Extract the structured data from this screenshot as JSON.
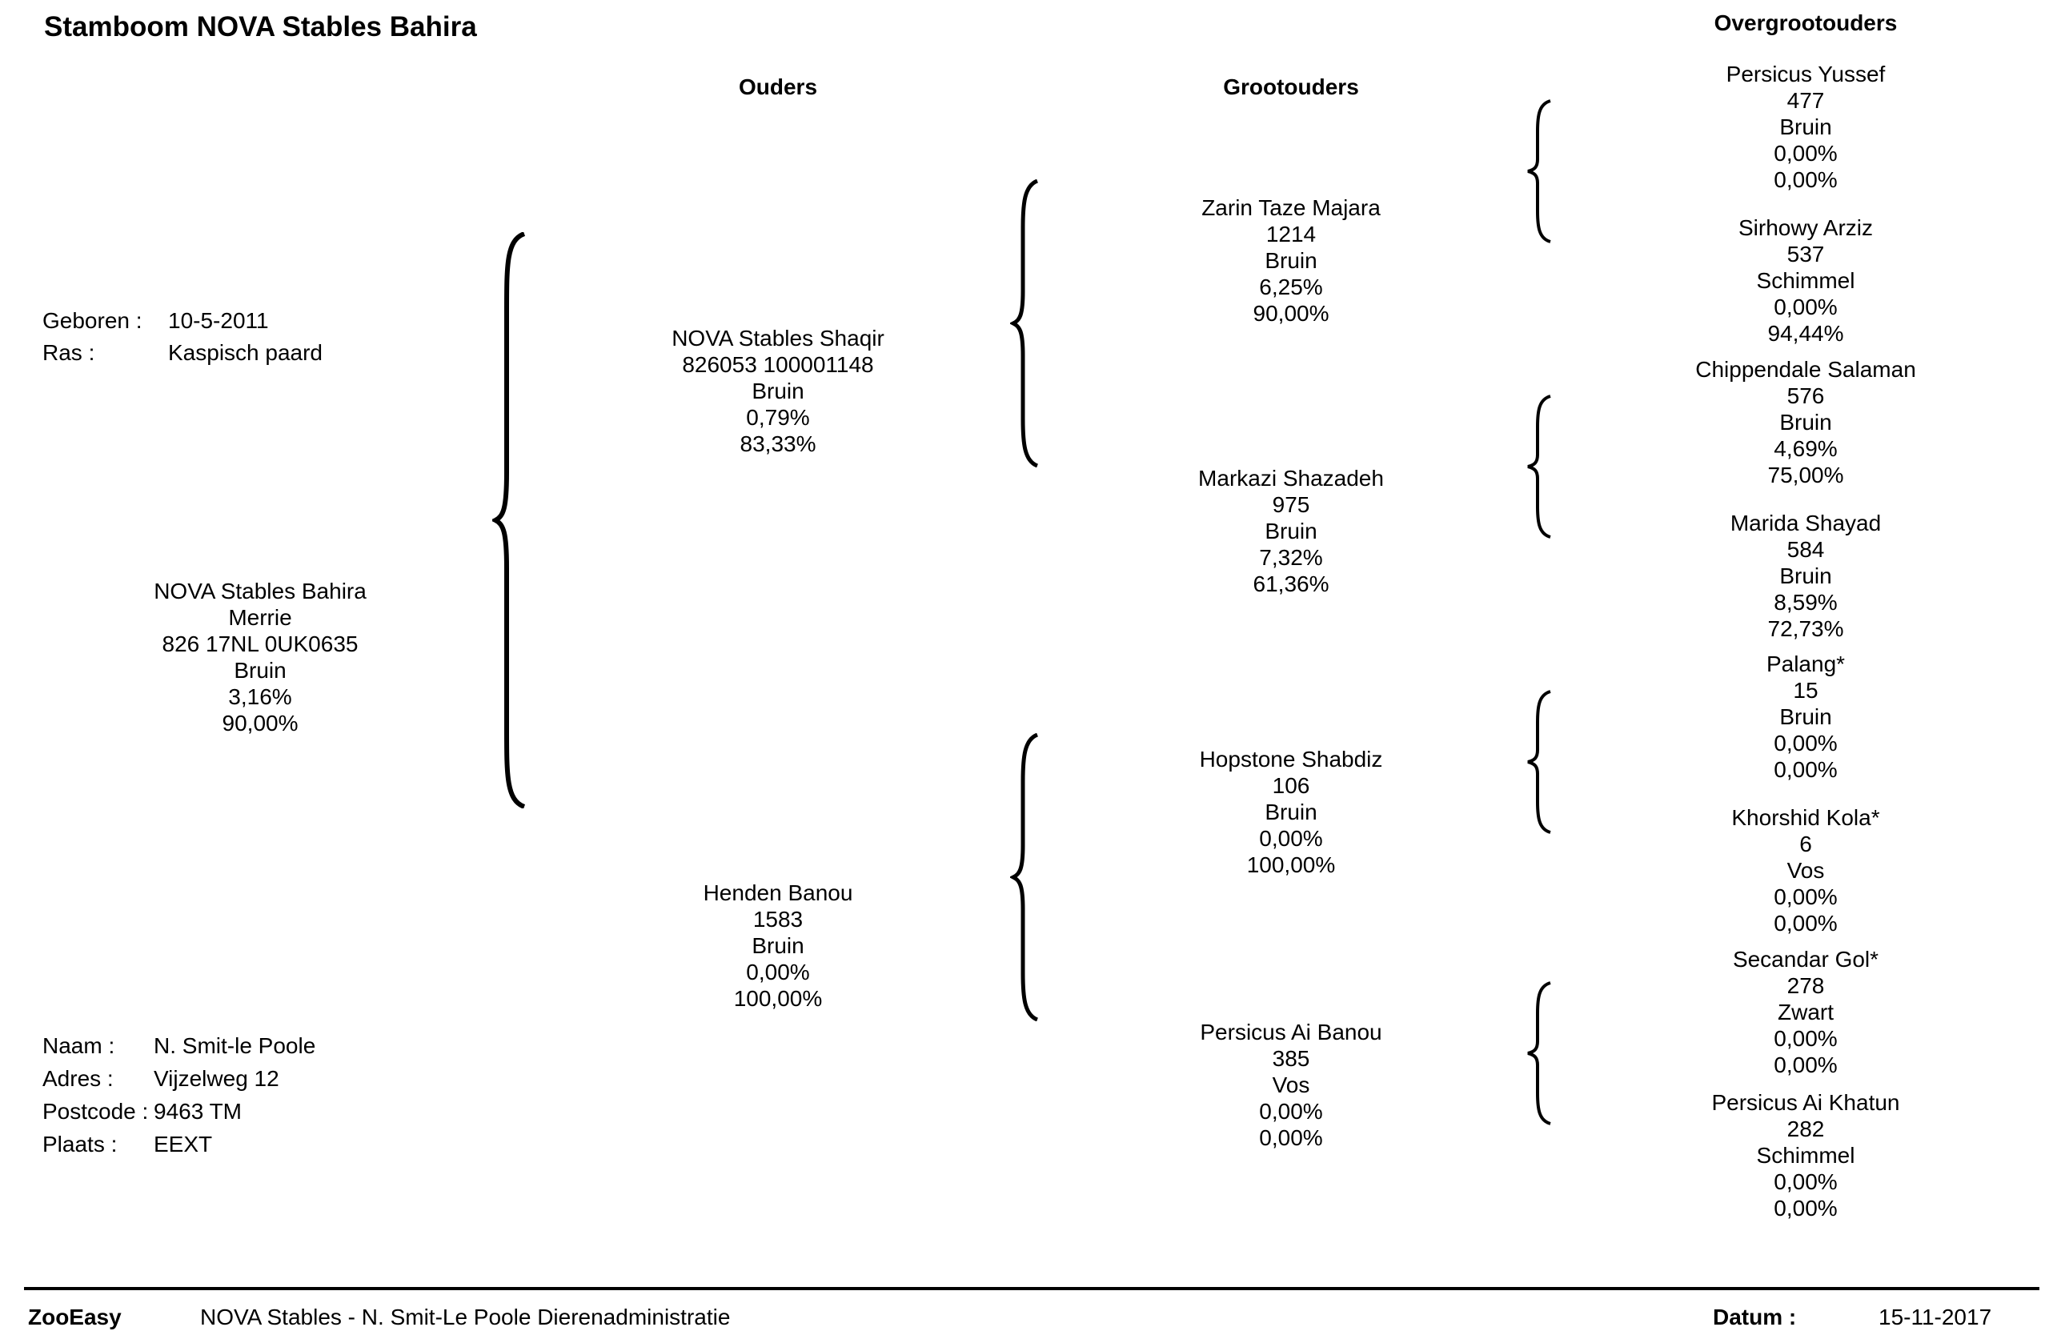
{
  "title": "Stamboom NOVA Stables Bahira",
  "headers": {
    "parents": "Ouders",
    "grandparents": "Grootouders",
    "great_grandparents": "Overgrootouders"
  },
  "subject_info": {
    "born_label": "Geboren :",
    "born_value": "10-5-2011",
    "breed_label": "Ras :",
    "breed_value": "Kaspisch paard"
  },
  "subject": {
    "name": "NOVA Stables Bahira",
    "sex": "Merrie",
    "id": "826 17NL 0UK0635",
    "color": "Bruin",
    "pct1": "3,16%",
    "pct2": "90,00%"
  },
  "owner": {
    "name_label": "Naam :",
    "name_value": "N.  Smit-le Poole",
    "address_label": "Adres :",
    "address_value": "Vijzelweg 12",
    "postcode_label": "Postcode :",
    "postcode_value": "9463 TM",
    "city_label": "Plaats :",
    "city_value": "EEXT"
  },
  "parents": [
    {
      "name": "NOVA Stables Shaqir",
      "id": "826053 100001148",
      "color": "Bruin",
      "pct1": "0,79%",
      "pct2": "83,33%"
    },
    {
      "name": "Henden Banou",
      "id": "1583",
      "color": "Bruin",
      "pct1": "0,00%",
      "pct2": "100,00%"
    }
  ],
  "grandparents": [
    {
      "name": "Zarin Taze Majara",
      "id": "1214",
      "color": "Bruin",
      "pct1": "6,25%",
      "pct2": "90,00%"
    },
    {
      "name": "Markazi Shazadeh",
      "id": "975",
      "color": "Bruin",
      "pct1": "7,32%",
      "pct2": "61,36%"
    },
    {
      "name": "Hopstone Shabdiz",
      "id": "106",
      "color": "Bruin",
      "pct1": "0,00%",
      "pct2": "100,00%"
    },
    {
      "name": "Persicus Ai Banou",
      "id": "385",
      "color": "Vos",
      "pct1": "0,00%",
      "pct2": "0,00%"
    }
  ],
  "great_grandparents": [
    {
      "name": "Persicus Yussef",
      "id": "477",
      "color": "Bruin",
      "pct1": "0,00%",
      "pct2": "0,00%"
    },
    {
      "name": "Sirhowy Arziz",
      "id": "537",
      "color": "Schimmel",
      "pct1": "0,00%",
      "pct2": "94,44%"
    },
    {
      "name": "Chippendale Salaman",
      "id": "576",
      "color": "Bruin",
      "pct1": "4,69%",
      "pct2": "75,00%"
    },
    {
      "name": "Marida Shayad",
      "id": "584",
      "color": "Bruin",
      "pct1": "8,59%",
      "pct2": "72,73%"
    },
    {
      "name": "Palang*",
      "id": "15",
      "color": "Bruin",
      "pct1": "0,00%",
      "pct2": "0,00%"
    },
    {
      "name": "Khorshid Kola*",
      "id": "6",
      "color": "Vos",
      "pct1": "0,00%",
      "pct2": "0,00%"
    },
    {
      "name": "Secandar Gol*",
      "id": "278",
      "color": "Zwart",
      "pct1": "0,00%",
      "pct2": "0,00%"
    },
    {
      "name": "Persicus Ai Khatun",
      "id": "282",
      "color": "Schimmel",
      "pct1": "0,00%",
      "pct2": "0,00%"
    }
  ],
  "footer": {
    "brand": "ZooEasy",
    "org": "NOVA Stables - N. Smit-Le Poole Dierenadministratie",
    "date_label": "Datum :",
    "date_value": "15-11-2017"
  }
}
